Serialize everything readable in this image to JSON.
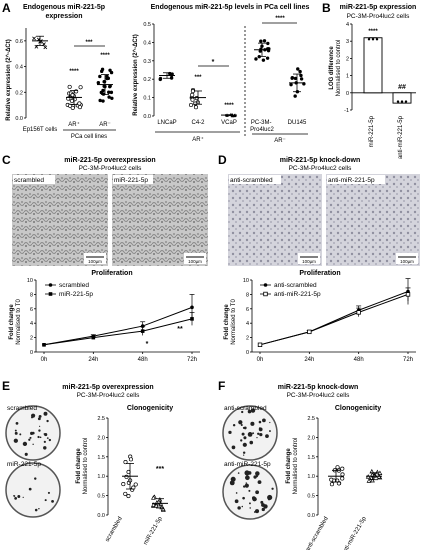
{
  "panels": {
    "A": {
      "letter": "A",
      "title1": "Endogenous miR-221-5p",
      "title2": "expression",
      "ylabel": "Relative expression (2^-ΔCt)",
      "yticks": [
        "0.0",
        "0.2",
        "0.4",
        "0.6"
      ],
      "cats": [
        "Ep156T cells",
        "AR⁺",
        "AR⁻"
      ],
      "group_label": "PCa cell lines",
      "stars_over": [
        "****",
        "****"
      ],
      "bracket_star": "***",
      "title_mid": "Endogenous miR-221-5p levels in PCa cell lines",
      "ylabel_mid": "Relative expression (2^-ΔCt)",
      "yticks_mid": [
        "0.0",
        "0.1",
        "0.2",
        "0.3",
        "0.4",
        "0.5"
      ],
      "cats_mid": [
        "LNCaP",
        "C4-2",
        "VCaP",
        "PC-3M-Pro4luc2",
        "DU145"
      ],
      "group_mid": [
        "AR⁺",
        "AR⁻"
      ],
      "stars_mid": [
        "***",
        "****"
      ],
      "bracket_mid": [
        "*",
        "****"
      ]
    },
    "B": {
      "letter": "B",
      "title1": "miR-221-5p expression",
      "title2": "PC-3M-Pro4luc2 cells",
      "ylabel1": "LOG difference",
      "ylabel2": "Normalised to control",
      "yticks": [
        "-1",
        "0",
        "1",
        "2",
        "3",
        "4"
      ],
      "cats": [
        "miR-221-5p",
        "anti-miR-221-5p"
      ],
      "stars": [
        "****",
        "##"
      ]
    },
    "C": {
      "letter": "C",
      "title1": "miR-221-5p overexpression",
      "title2": "PC-3M-Pro4luc2 cells",
      "img_labels": [
        "scrambled",
        "miR-221-5p"
      ],
      "scalebar": "100µm",
      "plot_title": "Proliferation",
      "ylabel1": "Fold change",
      "ylabel2": "Normalised to T0",
      "yticks": [
        "0",
        "2",
        "4",
        "6",
        "8",
        "10"
      ],
      "xticks": [
        "0h",
        "24h",
        "48h",
        "72h"
      ],
      "legend": [
        "scrambled",
        "miR-221-5p"
      ],
      "stars": [
        "*",
        "**"
      ]
    },
    "D": {
      "letter": "D",
      "title1": "miR-221-5p knock-down",
      "title2": "PC-3M-Pro4luc2 cells",
      "img_labels": [
        "anti-scrambled",
        "anti-miR-221-5p"
      ],
      "scalebar": "100µm",
      "plot_title": "Proliferation",
      "ylabel1": "Fold change",
      "ylabel2": "Normalised to T0",
      "yticks": [
        "0",
        "2",
        "4",
        "6",
        "8",
        "10"
      ],
      "xticks": [
        "0h",
        "24h",
        "48h",
        "72h"
      ],
      "legend": [
        "anti-scrambled",
        "anti-miR-221-5p"
      ]
    },
    "E": {
      "letter": "E",
      "title1": "miR-221-5p overexpression",
      "title2": "PC-3M-Pro4luc2 cells",
      "img_labels": [
        "scrambled",
        "miR-221-5p"
      ],
      "plot_title": "Clonogenicity",
      "ylabel1": "Fold change",
      "ylabel2": "Normalised to control",
      "yticks": [
        "0.0",
        "0.5",
        "1.0",
        "1.5",
        "2.0",
        "2.5"
      ],
      "cats": [
        "scrambled",
        "miR-221-5p"
      ],
      "stars": [
        "***"
      ]
    },
    "F": {
      "letter": "F",
      "title1": "miR-221-5p knock-down",
      "title2": "PC-3M-Pro4luc2 cells",
      "img_labels": [
        "anti-scrambled",
        "anti-miR-221-5p"
      ],
      "plot_title": "Clonogenicity",
      "ylabel1": "Fold change",
      "ylabel2": "Normalised to control",
      "yticks": [
        "0.0",
        "0.5",
        "1.0",
        "1.5",
        "2.0",
        "2.5"
      ],
      "cats": [
        "anti-scrambled",
        "anti-miR-221-5p"
      ]
    }
  },
  "chart_data": [
    {
      "type": "scatter",
      "panel": "A-left",
      "categories": [
        "Ep156T cells",
        "AR⁺",
        "AR⁻"
      ],
      "means": [
        0.6,
        0.16,
        0.26
      ],
      "ylim": [
        0,
        0.7
      ]
    },
    {
      "type": "scatter",
      "panel": "A-mid",
      "categories": [
        "LNCaP",
        "C4-2",
        "VCaP",
        "PC-3M-Pro4luc2",
        "DU145"
      ],
      "means": [
        0.22,
        0.1,
        0.005,
        0.36,
        0.18
      ],
      "ylim": [
        0,
        0.5
      ]
    },
    {
      "type": "bar",
      "panel": "B",
      "categories": [
        "miR-221-5p",
        "anti-miR-221-5p"
      ],
      "values": [
        3.2,
        -0.6
      ],
      "ylim": [
        -1,
        4
      ]
    },
    {
      "type": "line",
      "panel": "C",
      "x": [
        "0h",
        "24h",
        "48h",
        "72h"
      ],
      "series": [
        {
          "name": "scrambled",
          "values": [
            1,
            2.2,
            3.6,
            6.2
          ]
        },
        {
          "name": "miR-221-5p",
          "values": [
            1,
            2.0,
            2.9,
            4.6
          ]
        }
      ],
      "ylim": [
        0,
        10
      ]
    },
    {
      "type": "line",
      "panel": "D",
      "x": [
        "0h",
        "24h",
        "48h",
        "72h"
      ],
      "series": [
        {
          "name": "anti-scrambled",
          "values": [
            1,
            2.8,
            5.8,
            8.4
          ]
        },
        {
          "name": "anti-miR-221-5p",
          "values": [
            1,
            2.8,
            5.5,
            8.0
          ]
        }
      ],
      "ylim": [
        0,
        10
      ]
    },
    {
      "type": "scatter",
      "panel": "E",
      "categories": [
        "scrambled",
        "miR-221-5p"
      ],
      "means": [
        1.0,
        0.3
      ],
      "ylim": [
        0,
        2.5
      ]
    },
    {
      "type": "scatter",
      "panel": "F",
      "categories": [
        "anti-scrambled",
        "anti-miR-221-5p"
      ],
      "means": [
        1.0,
        1.0
      ],
      "ylim": [
        0,
        2.5
      ]
    }
  ]
}
